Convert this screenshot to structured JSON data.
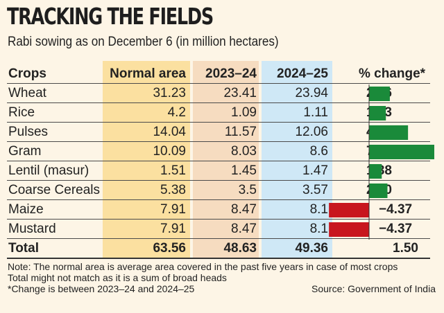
{
  "chart_data": {
    "type": "table",
    "title": "TRACKING THE FIELDS",
    "subtitle": "Rabi sowing as on December 6 (in million hectares)",
    "columns": [
      "Crops",
      "Normal area",
      "2023–24",
      "2024–25",
      "% change*"
    ],
    "rows": [
      {
        "crop": "Wheat",
        "normal": "31.23",
        "prev": "23.41",
        "curr": "23.94",
        "change": 2.26,
        "change_label": "2.26"
      },
      {
        "crop": "Rice",
        "normal": "4.2",
        "prev": "1.09",
        "curr": "1.11",
        "change": 1.83,
        "change_label": "1.83"
      },
      {
        "crop": "Pulses",
        "normal": "14.04",
        "prev": "11.57",
        "curr": "12.06",
        "change": 4.24,
        "change_label": "4.24"
      },
      {
        "crop": "Gram",
        "normal": "10.09",
        "prev": "8.03",
        "curr": "8.6",
        "change": 7.1,
        "change_label": "7.10"
      },
      {
        "crop": "Lentil (masur)",
        "normal": "1.51",
        "prev": "1.45",
        "curr": "1.47",
        "change": 1.38,
        "change_label": "1.38"
      },
      {
        "crop": "Coarse Cereals",
        "normal": "5.38",
        "prev": "3.5",
        "curr": "3.57",
        "change": 2.0,
        "change_label": "2.00"
      },
      {
        "crop": "Maize",
        "normal": "7.91",
        "prev": "8.47",
        "curr": "8.1",
        "change": -4.37,
        "change_label": "−4.37"
      },
      {
        "crop": "Mustard",
        "normal": "7.91",
        "prev": "8.47",
        "curr": "8.1",
        "change": -4.37,
        "change_label": "−4.37"
      }
    ],
    "total": {
      "crop": "Total",
      "normal": "63.56",
      "prev": "48.63",
      "curr": "49.36",
      "change_label": "1.50"
    },
    "notes": [
      "Note: The normal area is average area covered in the past five years in case of most crops",
      "Total might not match as it is a sum of broad heads",
      "*Change is between 2023–24 and 2024–25"
    ],
    "source": "Source: Government of India",
    "colors": {
      "positive": "#1a8a3a",
      "negative": "#c8161e",
      "normal_col": "#fbe0a0",
      "prev_col": "#f6dcc0",
      "curr_col": "#cfe8f6",
      "background": "#fdf5e6"
    }
  }
}
